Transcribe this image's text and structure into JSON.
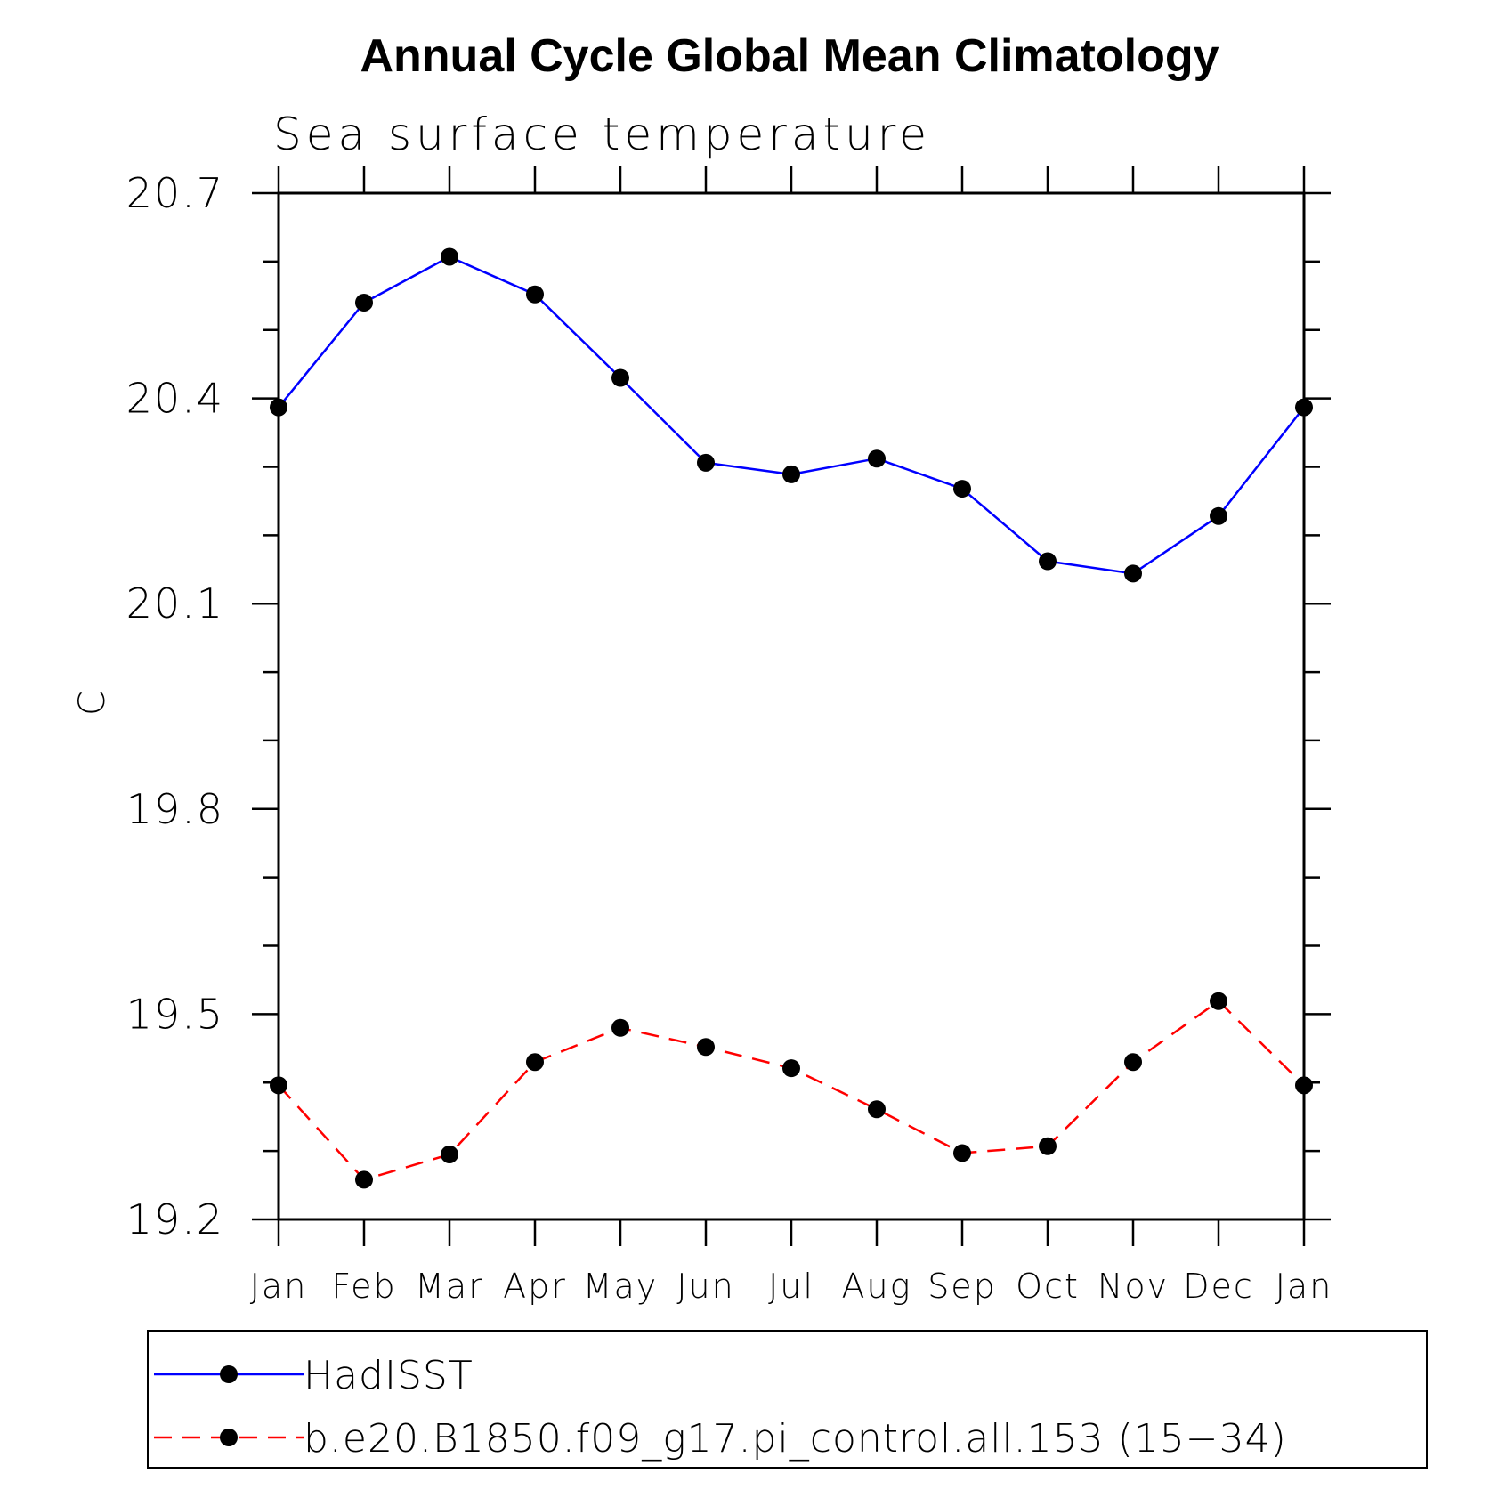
{
  "chart_data": {
    "type": "line",
    "title": "Annual Cycle Global Mean Climatology",
    "subtitle": "Sea surface temperature",
    "xlabel": "",
    "ylabel": "C",
    "ylim": [
      19.2,
      20.7
    ],
    "y_ticks": [
      "20.7",
      "20.4",
      "20.1",
      "19.8",
      "19.5",
      "19.2"
    ],
    "y_tick_values": [
      20.7,
      20.4,
      20.1,
      19.8,
      19.5,
      19.2
    ],
    "y_minor_step": 0.1,
    "categories": [
      "Jan",
      "Feb",
      "Mar",
      "Apr",
      "May",
      "Jun",
      "Jul",
      "Aug",
      "Sep",
      "Oct",
      "Nov",
      "Dec",
      "Jan"
    ],
    "grid": false,
    "legend_position": "bottom",
    "series": [
      {
        "name": "HadISST",
        "color": "#0000ff",
        "style": "solid",
        "marker": "filled-circle",
        "values": [
          20.387,
          20.54,
          20.607,
          20.552,
          20.43,
          20.306,
          20.289,
          20.312,
          20.268,
          20.162,
          20.144,
          20.228,
          20.387
        ]
      },
      {
        "name": "b.e20.B1850.f09_g17.pi_control.all.153 (15−34)",
        "color": "#ff0000",
        "style": "dashed",
        "marker": "filled-circle",
        "values": [
          19.396,
          19.258,
          19.295,
          19.43,
          19.48,
          19.452,
          19.421,
          19.361,
          19.297,
          19.307,
          19.43,
          19.519,
          19.396
        ]
      }
    ]
  }
}
